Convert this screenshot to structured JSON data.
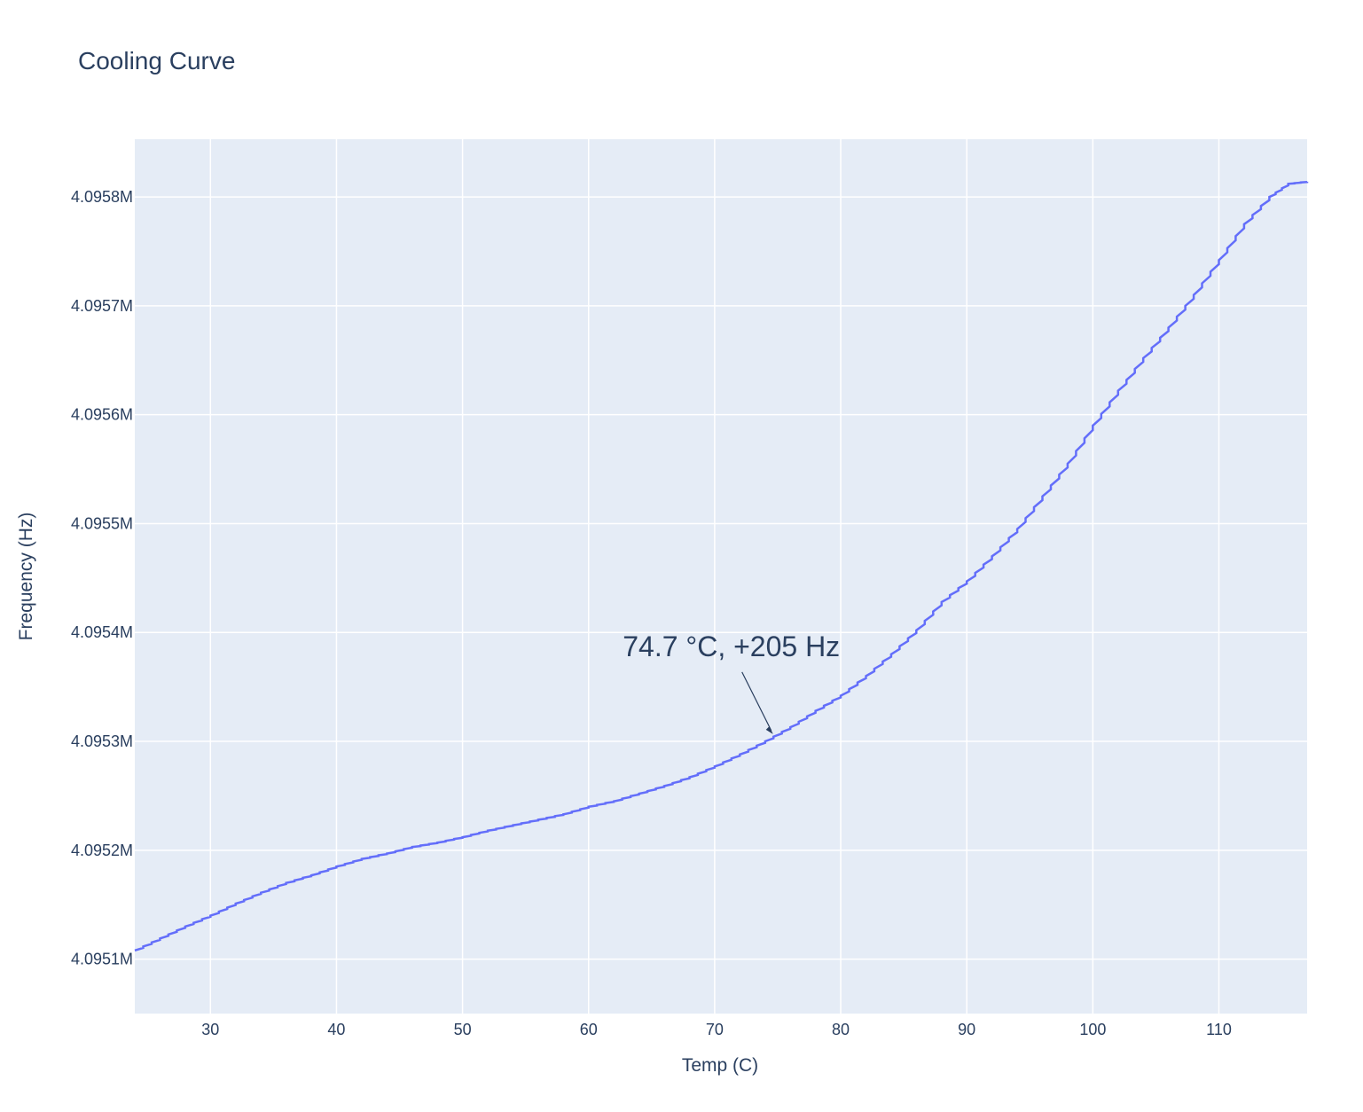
{
  "chart_data": {
    "type": "line",
    "title": "Cooling Curve",
    "xlabel": "Temp (C)",
    "ylabel": "Frequency (Hz)",
    "xlim": [
      24,
      117
    ],
    "ylim": [
      4095050,
      4095853
    ],
    "x_ticks": [
      30,
      40,
      50,
      60,
      70,
      80,
      90,
      100,
      110
    ],
    "x_tick_labels": [
      "30",
      "40",
      "50",
      "60",
      "70",
      "80",
      "90",
      "100",
      "110"
    ],
    "y_ticks": [
      4095100,
      4095200,
      4095300,
      4095400,
      4095500,
      4095600,
      4095700,
      4095800
    ],
    "y_tick_labels": [
      "4.0951M",
      "4.0952M",
      "4.0953M",
      "4.0954M",
      "4.0955M",
      "4.0956M",
      "4.0957M",
      "4.0958M"
    ],
    "grid": true,
    "plot_bgcolor": "#e5ecf6",
    "grid_color": "#ffffff",
    "line_color": "#636efa",
    "text_color": "#2a3f5f",
    "series": [
      {
        "x": [
          24,
          26,
          28,
          30,
          32,
          34,
          36,
          38,
          40,
          42,
          44,
          46,
          48,
          50,
          52,
          54,
          56,
          58,
          60,
          62,
          64,
          66,
          68,
          70,
          72,
          74,
          76,
          78,
          80,
          82,
          84,
          86,
          88,
          90,
          92,
          94,
          96,
          98,
          100,
          102,
          104,
          106,
          108,
          110,
          112,
          114,
          115.5,
          117
        ],
        "y": [
          4095108,
          4095119,
          4095130,
          4095140,
          4095151,
          4095161,
          4095170,
          4095177,
          4095185,
          4095192,
          4095197,
          4095203,
          4095207,
          4095212,
          4095218,
          4095223,
          4095228,
          4095233,
          4095240,
          4095245,
          4095252,
          4095259,
          4095267,
          4095277,
          4095288,
          4095300,
          4095313,
          4095328,
          4095342,
          4095360,
          4095380,
          4095402,
          4095428,
          4095447,
          4095470,
          4095495,
          4095525,
          4095555,
          4095590,
          4095622,
          4095652,
          4095680,
          4095710,
          4095742,
          4095775,
          4095800,
          4095812,
          4095814
        ]
      }
    ],
    "annotations": [
      {
        "text": "74.7 °C, +205 Hz",
        "x": 74.7,
        "y": 4095305
      }
    ]
  }
}
